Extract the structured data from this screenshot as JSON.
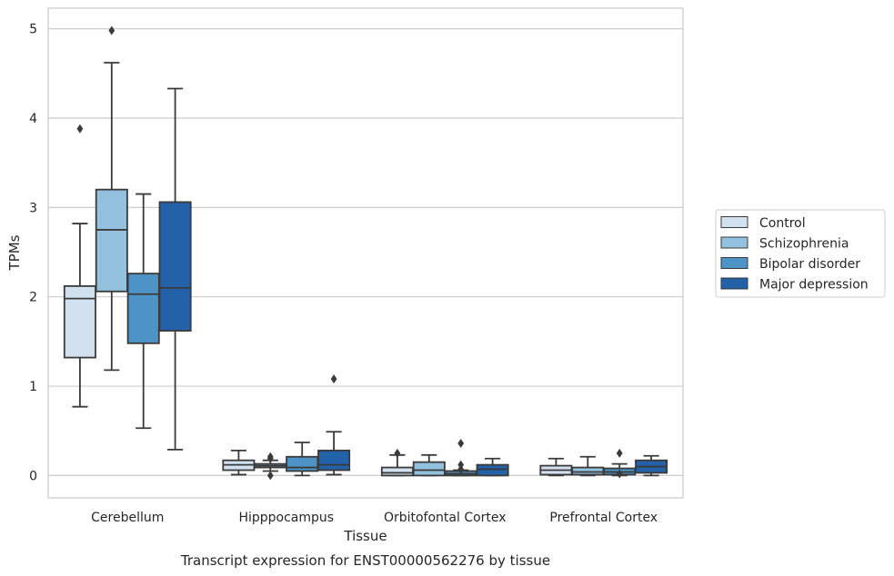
{
  "chart_data": {
    "type": "box",
    "caption": "Transcript expression for ENST00000562276 by tissue",
    "xlabel": "Tissue",
    "ylabel": "TPMs",
    "ylim": [
      -0.25,
      5.23
    ],
    "yticks": [
      0,
      1,
      2,
      3,
      4,
      5
    ],
    "grid": "horizontal",
    "legend_position": "right",
    "categories": [
      "Cerebellum",
      "Hipppocampus",
      "Orbitofontal Cortex",
      "Prefrontal Cortex"
    ],
    "series": [
      {
        "name": "Control",
        "color": "#d1e1f0",
        "boxes": [
          {
            "whisker_low": 0.77,
            "q1": 1.32,
            "median": 1.98,
            "q3": 2.12,
            "whisker_high": 2.82,
            "outliers": [
              3.88
            ]
          },
          {
            "whisker_low": 0.01,
            "q1": 0.06,
            "median": 0.12,
            "q3": 0.17,
            "whisker_high": 0.28,
            "outliers": []
          },
          {
            "whisker_low": 0.0,
            "q1": 0.0,
            "median": 0.03,
            "q3": 0.09,
            "whisker_high": 0.23,
            "outliers": [
              0.25
            ]
          },
          {
            "whisker_low": 0.0,
            "q1": 0.01,
            "median": 0.06,
            "q3": 0.11,
            "whisker_high": 0.19,
            "outliers": []
          }
        ]
      },
      {
        "name": "Schizophrenia",
        "color": "#94c1de",
        "boxes": [
          {
            "whisker_low": 1.18,
            "q1": 2.06,
            "median": 2.75,
            "q3": 3.2,
            "whisker_high": 4.62,
            "outliers": [
              4.98
            ]
          },
          {
            "whisker_low": 0.05,
            "q1": 0.09,
            "median": 0.11,
            "q3": 0.13,
            "whisker_high": 0.17,
            "outliers": [
              0.21,
              0.19,
              0.0
            ]
          },
          {
            "whisker_low": 0.0,
            "q1": 0.0,
            "median": 0.06,
            "q3": 0.15,
            "whisker_high": 0.23,
            "outliers": []
          },
          {
            "whisker_low": 0.0,
            "q1": 0.01,
            "median": 0.04,
            "q3": 0.09,
            "whisker_high": 0.21,
            "outliers": []
          }
        ]
      },
      {
        "name": "Bipolar disorder",
        "color": "#4d93c6",
        "boxes": [
          {
            "whisker_low": 0.53,
            "q1": 1.48,
            "median": 2.03,
            "q3": 2.26,
            "whisker_high": 3.15,
            "outliers": []
          },
          {
            "whisker_low": 0.0,
            "q1": 0.05,
            "median": 0.09,
            "q3": 0.21,
            "whisker_high": 0.37,
            "outliers": []
          },
          {
            "whisker_low": 0.0,
            "q1": 0.0,
            "median": 0.02,
            "q3": 0.05,
            "whisker_high": 0.06,
            "outliers": [
              0.36,
              0.12,
              0.07
            ]
          },
          {
            "whisker_low": 0.0,
            "q1": 0.01,
            "median": 0.04,
            "q3": 0.08,
            "whisker_high": 0.13,
            "outliers": [
              0.25,
              0.02
            ]
          }
        ]
      },
      {
        "name": "Major depression",
        "color": "#2361a8",
        "boxes": [
          {
            "whisker_low": 0.29,
            "q1": 1.62,
            "median": 2.1,
            "q3": 3.06,
            "whisker_high": 4.33,
            "outliers": []
          },
          {
            "whisker_low": 0.01,
            "q1": 0.06,
            "median": 0.12,
            "q3": 0.28,
            "whisker_high": 0.49,
            "outliers": [
              1.08
            ]
          },
          {
            "whisker_low": 0.0,
            "q1": 0.0,
            "median": 0.07,
            "q3": 0.12,
            "whisker_high": 0.19,
            "outliers": []
          },
          {
            "whisker_low": 0.0,
            "q1": 0.03,
            "median": 0.1,
            "q3": 0.17,
            "whisker_high": 0.22,
            "outliers": []
          }
        ]
      }
    ]
  }
}
